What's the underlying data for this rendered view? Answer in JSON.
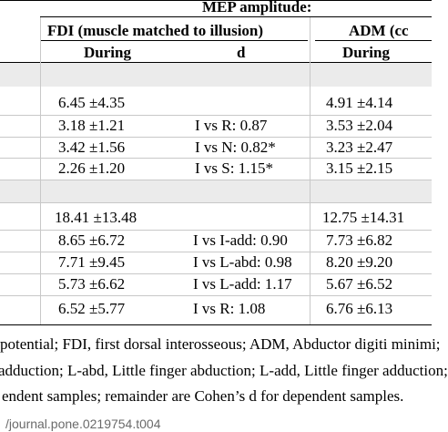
{
  "header": {
    "group_title": "MEP amplitude:",
    "fdi_title": "FDI (muscle matched to illusion)",
    "adm_title": "ADM (cc",
    "col_during_1": "During",
    "col_d": "d",
    "col_during_2": "During"
  },
  "rows_block1": [
    {
      "fdi": "6.45 ±4.35",
      "d": "",
      "adm": "4.91 ±4.14"
    },
    {
      "fdi": "3.18 ±1.21",
      "d": "I vs R: 0.87",
      "adm": "3.53 ±2.04"
    },
    {
      "fdi": "3.42 ±1.56",
      "d": "I vs N: 0.82*",
      "adm": "3.23 ±2.47"
    },
    {
      "fdi": "2.26 ±1.20",
      "d": "I vs S: 1.15*",
      "adm": "3.15 ±2.15"
    }
  ],
  "rows_block2": [
    {
      "fdi": "18.41 ±13.48",
      "d": "",
      "adm": "12.75 ±14.31"
    },
    {
      "fdi": "8.65 ±6.72",
      "d": "I vs I-add: 0.90",
      "adm": "7.73 ±6.82"
    },
    {
      "fdi": "7.71 ±9.45",
      "d": "I vs L-abd: 0.98",
      "adm": "8.20 ±9.20"
    },
    {
      "fdi": "5.73 ±6.62",
      "d": "I vs L-add: 1.17",
      "adm": "5.67 ±6.52"
    },
    {
      "fdi": "6.52 ±5.77",
      "d": "I vs R: 1.08",
      "adm": "6.76 ±6.13"
    }
  ],
  "footnotes": [
    "potential; FDI, first dorsal interosseous; ADM, Abductor digiti minimi;",
    "adduction; L-abd, Little finger abduction; L-add, Little finger adduction;",
    "endent samples; remainder are Cohen’s d for dependent samples."
  ],
  "doi": "/journal.pone.0219754.t004"
}
